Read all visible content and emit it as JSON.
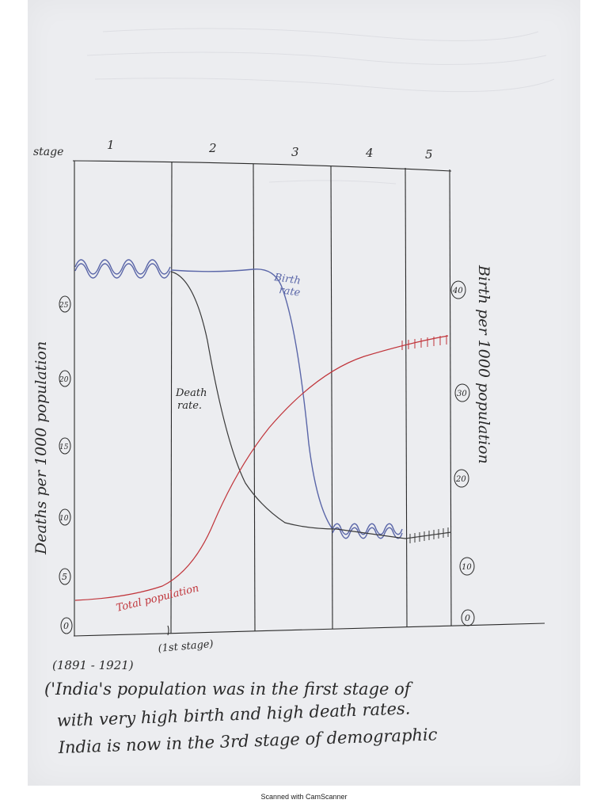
{
  "chart": {
    "stage_label": "stage",
    "stages": [
      "1",
      "2",
      "3",
      "4",
      "5"
    ],
    "left_axis_label": "Deaths per 1000 population",
    "right_axis_label": "Birth per 1000 population",
    "left_ticks": [
      "0",
      "5",
      "10",
      "15",
      "20",
      "25"
    ],
    "right_ticks": [
      "0",
      "10",
      "20",
      "30",
      "40"
    ],
    "birth_rate_label": [
      "Birth",
      "rate"
    ],
    "death_rate_label": [
      "Death",
      "rate."
    ],
    "total_population_label": "Total population",
    "first_stage_note": "(1st stage)",
    "years_note": "(1891 - 1921)"
  },
  "text": {
    "line1": "('India's population was in the first stage of",
    "line2": "with very high birth and high death rates.",
    "line3": "India is now in the 3rd stage of demographic"
  },
  "footer": "Scanned with CamScanner",
  "colors": {
    "birth": "#5a66a8",
    "death": "#3a3a3a",
    "population": "#c0343a",
    "ink": "#2a2a2a"
  }
}
